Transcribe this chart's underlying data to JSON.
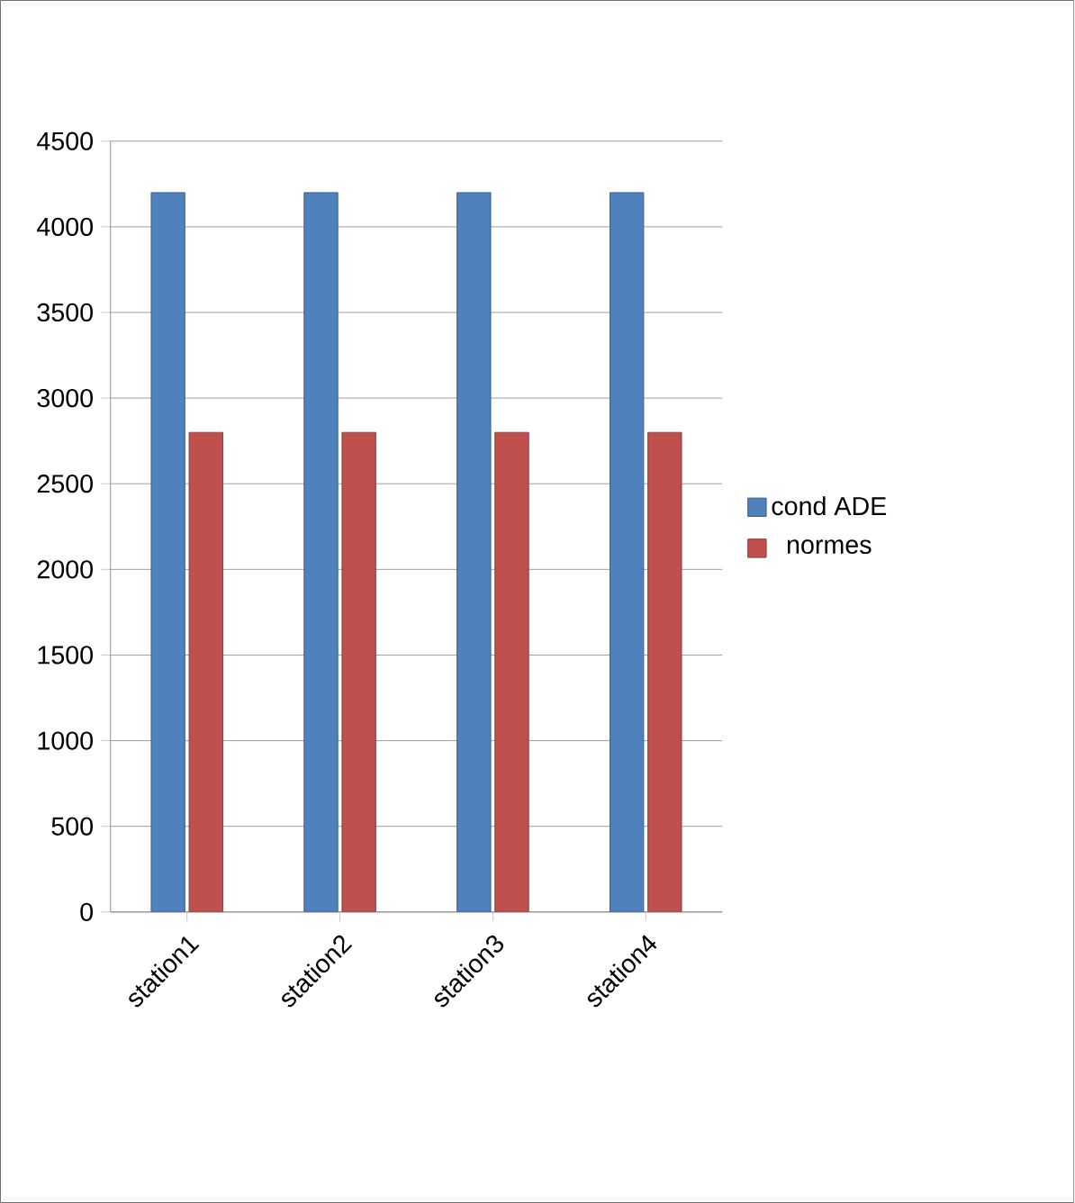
{
  "chart_data": {
    "type": "bar",
    "categories": [
      "station1",
      "station2",
      "station3",
      "station4"
    ],
    "series": [
      {
        "name": "cond ADE",
        "color": "#4f81bd",
        "values": [
          4200,
          4200,
          4200,
          4200
        ]
      },
      {
        "name": "normes",
        "color": "#c0504d",
        "values": [
          2800,
          2800,
          2800,
          2800
        ]
      }
    ],
    "ylim": [
      0,
      4500
    ],
    "yticks": [
      0,
      500,
      1000,
      1500,
      2000,
      2500,
      3000,
      3500,
      4000,
      4500
    ],
    "grid": "y",
    "legend": "right"
  }
}
